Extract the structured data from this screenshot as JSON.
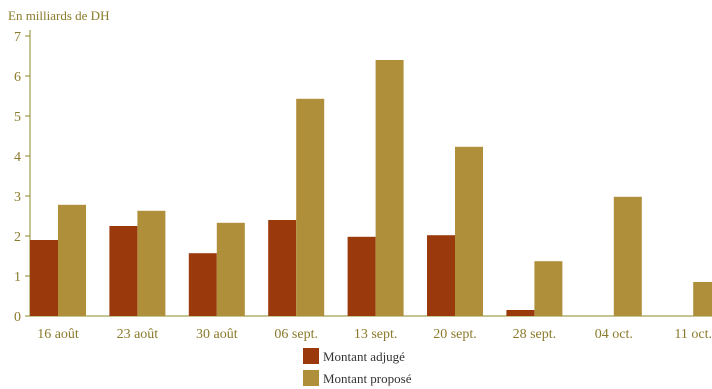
{
  "chart_data": {
    "type": "bar",
    "ylabel": "En milliards de DH",
    "ylim": [
      0,
      7
    ],
    "yticks": [
      0,
      1,
      2,
      3,
      4,
      5,
      6,
      7
    ],
    "categories": [
      "16 août",
      "23 août",
      "30 août",
      "06 sept.",
      "13 sept.",
      "20 sept.",
      "28 sept.",
      "04 oct.",
      "11 oct."
    ],
    "series": [
      {
        "name": "Montant adjugé",
        "color": "#9a3a0c",
        "values": [
          1.9,
          2.25,
          1.57,
          2.4,
          1.98,
          2.02,
          0.15,
          0,
          0
        ]
      },
      {
        "name": "Montant proposé",
        "color": "#b08f3a",
        "values": [
          2.78,
          2.63,
          2.33,
          5.43,
          6.4,
          4.23,
          1.37,
          2.98,
          0.85
        ]
      }
    ],
    "grid": false,
    "legend": "bottom",
    "axis_color": "#8a8a2a"
  }
}
